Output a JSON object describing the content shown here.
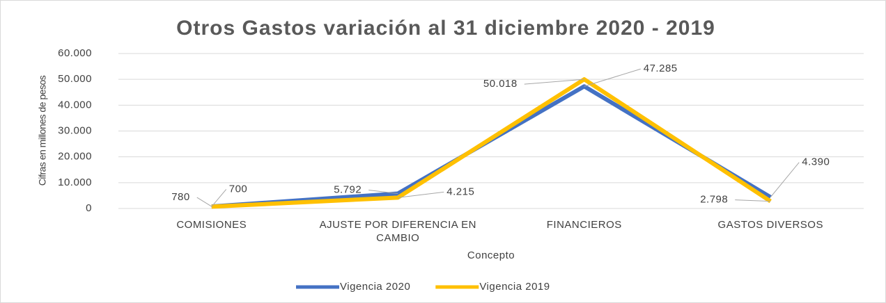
{
  "chart_data": {
    "type": "line",
    "title": "Otros Gastos variación al 31 diciembre 2020 - 2019",
    "x_label": "Concepto",
    "y_label": "Cifras en millones de pesos",
    "categories": [
      "COMISIONES",
      "AJUSTE POR DIFERENCIA EN CAMBIO",
      "FINANCIEROS",
      "GASTOS DIVERSOS"
    ],
    "series": [
      {
        "name": "Vigencia 2020",
        "color": "#4472c4",
        "values": [
          780,
          5792,
          47285,
          4390
        ],
        "value_labels": [
          "780",
          "5.792",
          "47.285",
          "4.390"
        ]
      },
      {
        "name": "Vigencia 2019",
        "color": "#ffc000",
        "values": [
          700,
          4215,
          50018,
          2798
        ],
        "value_labels": [
          "700",
          "4.215",
          "50.018",
          "2.798"
        ]
      }
    ],
    "ylim": [
      0,
      60000
    ],
    "yticks": [
      0,
      {
        "value": 10000,
        "label": "10.000"
      },
      {
        "value": 20000,
        "label": "20.000"
      },
      {
        "value": 30000,
        "label": "30.000"
      },
      {
        "value": 40000,
        "label": "40.000"
      },
      {
        "value": 50000,
        "label": "50.000"
      },
      {
        "value": 60000,
        "label": "60.000"
      }
    ],
    "grid": true,
    "legend": "bottom"
  }
}
